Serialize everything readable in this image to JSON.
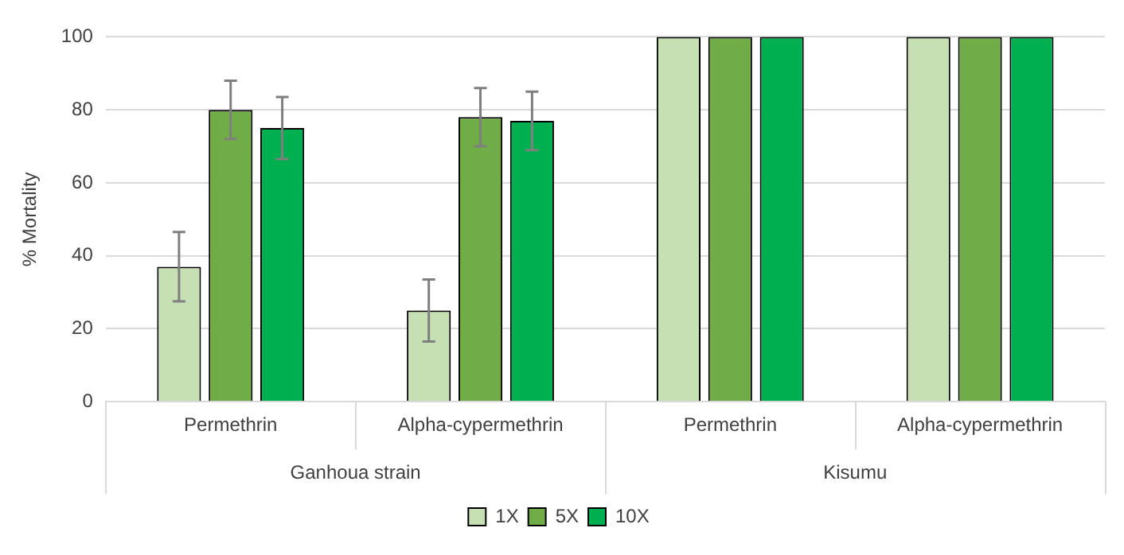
{
  "chart_data": {
    "type": "bar",
    "ylabel": "% Mortality",
    "categories": [
      "Permethrin",
      "Alpha-cypermethrin",
      "Permethrin",
      "Alpha-cypermethrin"
    ],
    "series": [
      {
        "name": "1X",
        "color": "#c6e0b4",
        "values": [
          37,
          25,
          100,
          100
        ],
        "errors": [
          9.5,
          8.5,
          null,
          null
        ]
      },
      {
        "name": "5X",
        "color": "#70ad47",
        "values": [
          80,
          78,
          100,
          100
        ],
        "errors": [
          8,
          8,
          null,
          null
        ]
      },
      {
        "name": "10X",
        "color": "#00b050",
        "values": [
          75,
          77,
          100,
          100
        ],
        "errors": [
          8.5,
          8,
          null,
          null
        ]
      }
    ],
    "annotations": [
      "Ganhoua strain",
      "Kisumu"
    ],
    "ylim": [
      0,
      100
    ],
    "yticks": [
      0,
      20,
      40,
      60,
      80,
      100
    ],
    "grid": "y",
    "legend": "bottom"
  }
}
